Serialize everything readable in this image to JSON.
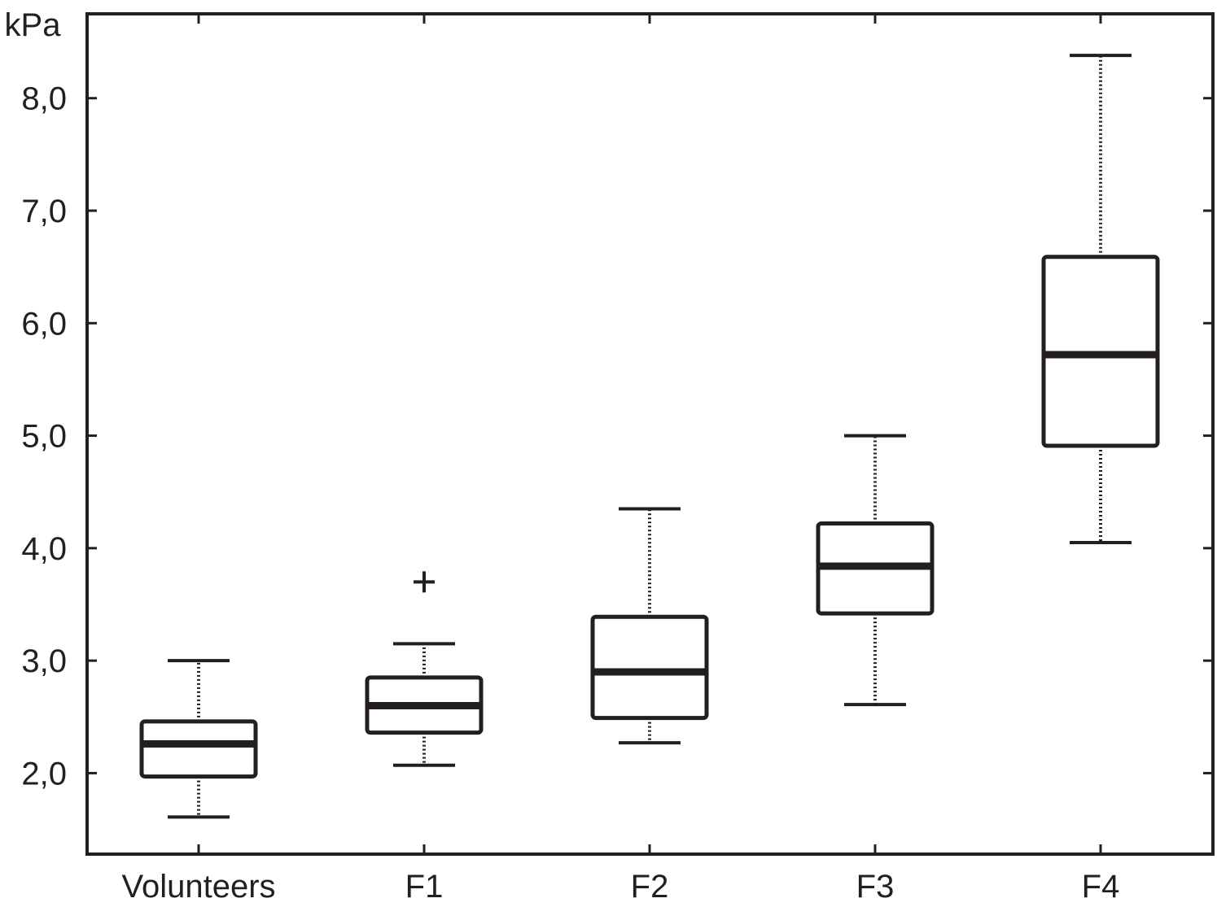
{
  "chart_data": {
    "type": "box",
    "ylabel": "kPa",
    "xlabel": "",
    "ylim": [
      1.28,
      8.75
    ],
    "yticks": [
      2.0,
      3.0,
      4.0,
      5.0,
      6.0,
      7.0,
      8.0
    ],
    "ytick_labels": [
      "2,0",
      "3,0",
      "4,0",
      "5,0",
      "6,0",
      "7,0",
      "8,0"
    ],
    "categories": [
      "Volunteers",
      "F1",
      "F2",
      "F3",
      "F4"
    ],
    "boxes": [
      {
        "category": "Volunteers",
        "whisker_low": 1.61,
        "q1": 1.97,
        "median": 2.26,
        "q3": 2.46,
        "whisker_high": 3.0,
        "outliers": []
      },
      {
        "category": "F1",
        "whisker_low": 2.07,
        "q1": 2.36,
        "median": 2.6,
        "q3": 2.85,
        "whisker_high": 3.15,
        "outliers": [
          3.7
        ]
      },
      {
        "category": "F2",
        "whisker_low": 2.27,
        "q1": 2.49,
        "median": 2.9,
        "q3": 3.39,
        "whisker_high": 4.35,
        "outliers": []
      },
      {
        "category": "F3",
        "whisker_low": 2.61,
        "q1": 3.42,
        "median": 3.84,
        "q3": 4.22,
        "whisker_high": 5.0,
        "outliers": []
      },
      {
        "category": "F4",
        "whisker_low": 4.05,
        "q1": 4.91,
        "median": 5.72,
        "q3": 6.59,
        "whisker_high": 8.38,
        "outliers": []
      }
    ],
    "colors": {
      "ink": "#231f20",
      "background": "#ffffff"
    },
    "grid": false,
    "legend": "none"
  }
}
